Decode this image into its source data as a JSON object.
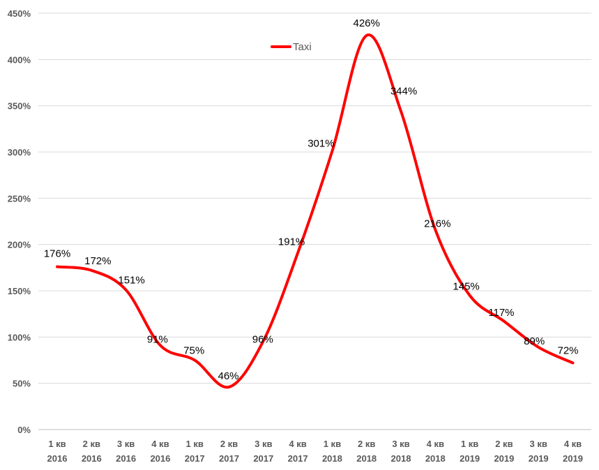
{
  "chart_data": {
    "type": "line",
    "title": "",
    "xlabel": "",
    "ylabel": "",
    "categories": [
      [
        "1 кв",
        "2016"
      ],
      [
        "2 кв",
        "2016"
      ],
      [
        "3 кв",
        "2016"
      ],
      [
        "4 кв",
        "2016"
      ],
      [
        "1 кв",
        "2017"
      ],
      [
        "2 кв",
        "2017"
      ],
      [
        "3 кв",
        "2017"
      ],
      [
        "4 кв",
        "2017"
      ],
      [
        "1 кв",
        "2018"
      ],
      [
        "2 кв",
        "2018"
      ],
      [
        "3 кв",
        "2018"
      ],
      [
        "4 кв",
        "2018"
      ],
      [
        "1 кв",
        "2019"
      ],
      [
        "2 кв",
        "2019"
      ],
      [
        "3 кв",
        "2019"
      ],
      [
        "4 кв",
        "2019"
      ]
    ],
    "series": [
      {
        "name": "Taxi",
        "color": "#ff0000",
        "values": [
          176,
          172,
          151,
          91,
          75,
          46,
          96,
          191,
          301,
          426,
          344,
          216,
          145,
          117,
          89,
          72
        ],
        "labels": [
          "176%",
          "172%",
          "151%",
          "91%",
          "75%",
          "46%",
          "96%",
          "191%",
          "301%",
          "426%",
          "344%",
          "216%",
          "145%",
          "117%",
          "89%",
          "72%"
        ]
      }
    ],
    "ylim": [
      0,
      450
    ],
    "yticks": [
      0,
      50,
      100,
      150,
      200,
      250,
      300,
      350,
      400,
      450
    ],
    "ytick_labels": [
      "0%",
      "50%",
      "100%",
      "150%",
      "200%",
      "250%",
      "300%",
      "350%",
      "400%",
      "450%"
    ],
    "grid": true,
    "smooth": true,
    "legend": {
      "position": "top-center"
    }
  }
}
